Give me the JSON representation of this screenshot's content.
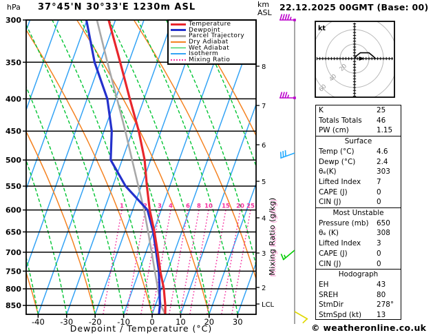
{
  "header": {
    "pressure_unit": "hPa",
    "title": "37°45'N 30°33'E 1230m ASL",
    "altitude_line1": "km",
    "altitude_line2": "ASL"
  },
  "right_header": {
    "title": "22.12.2025 00GMT (Base: 00)"
  },
  "footer": {
    "credit": "© weatheronline.co.uk"
  },
  "colors": {
    "temperature": "#e8262c",
    "dewpoint": "#2431cc",
    "parcel": "#a8a8a8",
    "dry_adiabat": "#f58220",
    "wet_adiabat": "#00c432",
    "isotherm": "#33a3f5",
    "mixing_ratio": "#f5309f",
    "barb_purple": "#bb00cc",
    "barb_cyan": "#22aaff",
    "barb_green": "#00cc00",
    "barb_yellow": "#e0d800",
    "hodo_ring": "#b8b8b8",
    "hodo_label": "#9a9a9a"
  },
  "legend": [
    {
      "label": "Temperature",
      "color": "#e8262c",
      "style": "solid",
      "thick": 3.2
    },
    {
      "label": "Dewpoint",
      "color": "#2431cc",
      "style": "solid",
      "thick": 3.2
    },
    {
      "label": "Parcel Trajectory",
      "color": "#a8a8a8",
      "style": "solid",
      "thick": 3.2
    },
    {
      "label": "Dry Adiabat",
      "color": "#f58220",
      "style": "solid",
      "thick": 1.6
    },
    {
      "label": "Wet Adiabat",
      "color": "#00c432",
      "style": "solid",
      "thick": 1.6
    },
    {
      "label": "Isotherm",
      "color": "#33a3f5",
      "style": "solid",
      "thick": 1.6
    },
    {
      "label": "Mixing Ratio",
      "color": "#f5309f",
      "style": "dotted",
      "thick": 2
    }
  ],
  "chart_data": {
    "type": "skewt_log_p",
    "title": "37°45'N 30°33'E 1230m ASL",
    "xlabel": "Dewpoint / Temperature (°C)",
    "ylabel": "hPa",
    "pressure_ticks": [
      300,
      350,
      400,
      450,
      500,
      550,
      600,
      650,
      700,
      750,
      800,
      850
    ],
    "pressure_range": [
      300,
      878
    ],
    "temp_ticks": [
      -40,
      -30,
      -20,
      -10,
      0,
      10,
      20,
      30
    ],
    "altitude_ticks_km": [
      "8",
      "7",
      "6",
      "5",
      "4",
      "3",
      "2"
    ],
    "lcl_label": "LCL",
    "mixing_ratio_axis_label": "Mixing Ratio (g/kg)",
    "mixing_ratio_labels": [
      1,
      2,
      3,
      4,
      6,
      8,
      10,
      15,
      20,
      25
    ],
    "temperature_profile": [
      {
        "p": 878,
        "t": 4.6
      },
      {
        "p": 850,
        "t": 3.5
      },
      {
        "p": 800,
        "t": 0.9
      },
      {
        "p": 750,
        "t": -2.6
      },
      {
        "p": 700,
        "t": -5.9
      },
      {
        "p": 650,
        "t": -9.6
      },
      {
        "p": 600,
        "t": -14.0
      },
      {
        "p": 550,
        "t": -18.0
      },
      {
        "p": 500,
        "t": -22.1
      },
      {
        "p": 450,
        "t": -27.8
      },
      {
        "p": 400,
        "t": -35.0
      },
      {
        "p": 350,
        "t": -43.0
      },
      {
        "p": 300,
        "t": -52.4
      }
    ],
    "dewpoint_profile": [
      {
        "p": 878,
        "t": 2.4
      },
      {
        "p": 850,
        "t": 1.6
      },
      {
        "p": 800,
        "t": -0.6
      },
      {
        "p": 750,
        "t": -3.1
      },
      {
        "p": 700,
        "t": -6.4
      },
      {
        "p": 650,
        "t": -10.0
      },
      {
        "p": 600,
        "t": -14.8
      },
      {
        "p": 550,
        "t": -25.5
      },
      {
        "p": 500,
        "t": -34.0
      },
      {
        "p": 450,
        "t": -37.3
      },
      {
        "p": 400,
        "t": -42.9
      },
      {
        "p": 350,
        "t": -52.0
      },
      {
        "p": 300,
        "t": -60.2
      }
    ],
    "parcel_profile": [
      {
        "p": 878,
        "t": 4.6
      },
      {
        "p": 850,
        "t": 2.0
      },
      {
        "p": 800,
        "t": -1.2
      },
      {
        "p": 750,
        "t": -4.5
      },
      {
        "p": 700,
        "t": -8.0
      },
      {
        "p": 650,
        "t": -11.8
      },
      {
        "p": 600,
        "t": -16.0
      },
      {
        "p": 550,
        "t": -21.0
      },
      {
        "p": 500,
        "t": -26.5
      },
      {
        "p": 450,
        "t": -32.5
      },
      {
        "p": 400,
        "t": -39.5
      },
      {
        "p": 350,
        "t": -47.5
      },
      {
        "p": 300,
        "t": -56.5
      }
    ],
    "wind_barbs": [
      {
        "level": "top",
        "speed_kt": 45,
        "color": "#bb00cc",
        "angle": 0,
        "marker": true
      },
      {
        "level": "high",
        "speed_kt": 35,
        "color": "#bb00cc",
        "angle": 0,
        "marker": true
      },
      {
        "level": "mid",
        "speed_kt": 30,
        "color": "#22aaff",
        "angle": -20,
        "marker": false
      },
      {
        "level": "low",
        "speed_kt": 15,
        "color": "#00cc00",
        "angle": -40,
        "marker": false
      },
      {
        "level": "sfc",
        "speed_kt": 10,
        "color": "#e0d800",
        "angle": -150,
        "marker": false
      }
    ]
  },
  "hodograph": {
    "unit_label": "kt",
    "rings_kt": [
      20,
      40,
      60
    ],
    "ring_labels": [
      "20",
      "40",
      "60"
    ],
    "trace_kt": [
      [
        0,
        0
      ],
      [
        3,
        4
      ],
      [
        8,
        8
      ],
      [
        20,
        8
      ],
      [
        26,
        3
      ],
      [
        29,
        0
      ]
    ],
    "storm_motion_kt": [
      12,
      0
    ]
  },
  "table": {
    "sections": [
      {
        "header": "",
        "rows": [
          [
            "K",
            "25"
          ],
          [
            "Totals Totals",
            "46"
          ],
          [
            "PW (cm)",
            "1.15"
          ]
        ]
      },
      {
        "header": "Surface",
        "rows": [
          [
            "Temp (°C)",
            "4.6"
          ],
          [
            "Dewp (°C)",
            "2.4"
          ],
          [
            "θₑ(K)",
            "303"
          ],
          [
            "Lifted Index",
            "7"
          ],
          [
            "CAPE (J)",
            "0"
          ],
          [
            "CIN (J)",
            "0"
          ]
        ]
      },
      {
        "header": "Most Unstable",
        "rows": [
          [
            "Pressure (mb)",
            "650"
          ],
          [
            "θₑ (K)",
            "308"
          ],
          [
            "Lifted Index",
            "3"
          ],
          [
            "CAPE (J)",
            "0"
          ],
          [
            "CIN (J)",
            "0"
          ]
        ]
      },
      {
        "header": "Hodograph",
        "rows": [
          [
            "EH",
            "43"
          ],
          [
            "SREH",
            "80"
          ],
          [
            "StmDir",
            "278°"
          ],
          [
            "StmSpd (kt)",
            "13"
          ]
        ]
      }
    ]
  }
}
